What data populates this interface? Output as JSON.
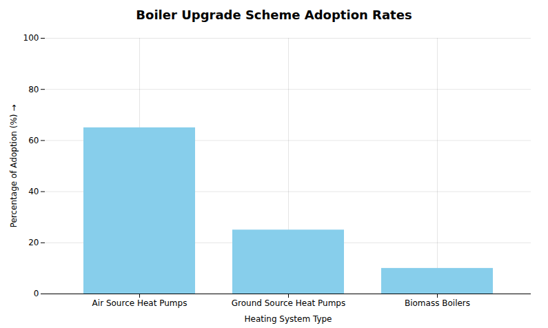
{
  "chart_data": {
    "type": "bar",
    "title": "Boiler Upgrade Scheme Adoption Rates",
    "xlabel": "Heating System Type",
    "ylabel": "Percentage of Adoption (%)",
    "categories": [
      "Air Source Heat Pumps",
      "Ground Source Heat Pumps",
      "Biomass Boilers"
    ],
    "values": [
      65,
      25,
      10
    ],
    "color": "#87CEEB",
    "ylim": [
      0,
      100
    ],
    "yticks": [
      0,
      20,
      40,
      60,
      80,
      100
    ],
    "grid": true
  }
}
